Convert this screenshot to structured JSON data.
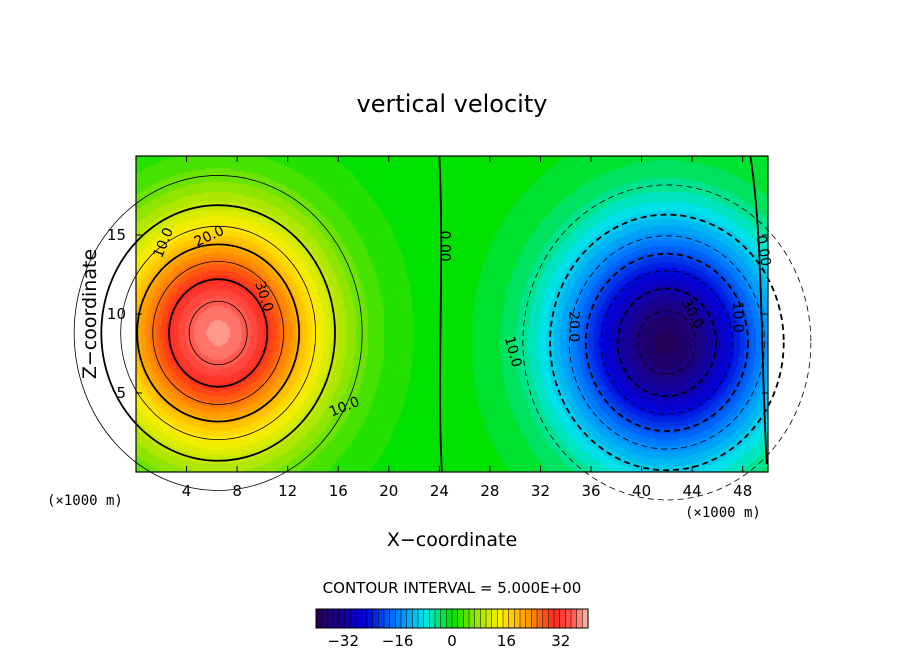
{
  "chart_data": {
    "type": "contour",
    "title": "vertical velocity",
    "xlabel": "X−coordinate",
    "ylabel": "Z−coordinate",
    "x_unit": "(×1000 m)",
    "z_unit": "(×1000 m)",
    "xlim": [
      0,
      50
    ],
    "ylim": [
      0,
      20
    ],
    "xticks": [
      4,
      8,
      12,
      16,
      20,
      24,
      28,
      32,
      36,
      40,
      44,
      48
    ],
    "xtick_labels": [
      "4",
      "8",
      "12",
      "16",
      "20",
      "24",
      "28",
      "32",
      "36",
      "40",
      "44",
      "48"
    ],
    "yticks": [
      5,
      10,
      15
    ],
    "ytick_labels": [
      "5",
      "10",
      "15"
    ],
    "contour_interval_text": "CONTOUR INTERVAL = 5.000E+00",
    "contour_interval": 5.0,
    "updraft": {
      "center_x": 6.5,
      "center_z": 8.8,
      "max": 38
    },
    "downdraft": {
      "center_x": 42,
      "center_z": 8.2,
      "min": -38
    },
    "contour_labels": [
      {
        "text": "10.0",
        "x": 2.2,
        "z": 14.5,
        "angle": -68
      },
      {
        "text": "20.0",
        "x": 5.8,
        "z": 14.9,
        "angle": -25
      },
      {
        "text": "30.0",
        "x": 10.1,
        "z": 11.1,
        "angle": 72
      },
      {
        "text": "10.0",
        "x": 16.5,
        "z": 4.1,
        "angle": -22
      },
      {
        "text": "0.00",
        "x": 24.4,
        "z": 14.3,
        "angle": 90
      },
      {
        "text": "20.0",
        "x": 34.6,
        "z": 9.2,
        "angle": 90
      },
      {
        "text": "10.0",
        "x": 29.8,
        "z": 7.6,
        "angle": 75
      },
      {
        "text": "30.0",
        "x": 44.0,
        "z": 10.0,
        "angle": 62
      },
      {
        "text": "10.0",
        "x": 47.6,
        "z": 9.8,
        "angle": 88
      },
      {
        "text": "0.00",
        "x": 49.6,
        "z": 14.0,
        "angle": 80
      }
    ],
    "colorbar": {
      "range": [
        -40,
        40
      ],
      "ticks": [
        -32,
        -16,
        0,
        16,
        32
      ],
      "tick_labels": [
        "−32",
        "−16",
        "0",
        "16",
        "32"
      ],
      "segments": 48
    }
  }
}
